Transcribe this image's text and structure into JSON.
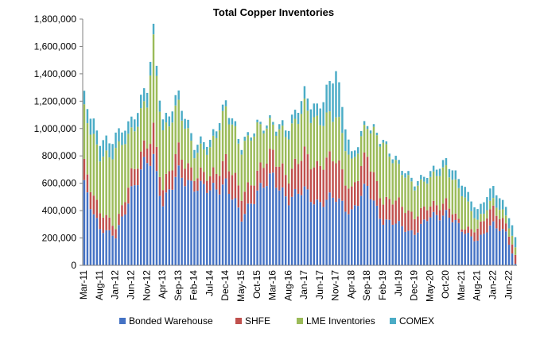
{
  "chart_data": {
    "type": "bar",
    "stacked": true,
    "title": "Total Copper Inventories",
    "xlabel": "",
    "ylabel": "",
    "ylim": [
      0,
      1800000
    ],
    "yticks": [
      "0",
      "200,000",
      "400,000",
      "600,000",
      "800,000",
      "1,000,000",
      "1,200,000",
      "1,400,000",
      "1,600,000",
      "1,800,000"
    ],
    "ytick_values": [
      0,
      200000,
      400000,
      600000,
      800000,
      1000000,
      1200000,
      1400000,
      1600000,
      1800000
    ],
    "xtick_labels": [
      "Mar-11",
      "Aug-11",
      "Jan-12",
      "Jun-12",
      "Nov-12",
      "Apr-13",
      "Sep-13",
      "Feb-14",
      "Jul-14",
      "Dec-14",
      "May-15",
      "Oct-15",
      "Mar-16",
      "Aug-16",
      "Jan-17",
      "Jun-17",
      "Nov-17",
      "Apr-18",
      "Sep-18",
      "Feb-19",
      "Jul-19",
      "Dec-19",
      "May-20",
      "Oct-20",
      "Mar-21",
      "Aug-21",
      "Jan-22",
      "Jun-22"
    ],
    "first_period": "Mar-11",
    "period_count": 138,
    "grid": false,
    "legend_position": "bottom",
    "series": [
      {
        "name": "Bonded Warehouse",
        "color": "#4472C4"
      },
      {
        "name": "SHFE",
        "color": "#C0504D"
      },
      {
        "name": "LME Inventories",
        "color": "#9BBB59"
      },
      {
        "name": "COMEX",
        "color": "#4BACC6"
      }
    ],
    "anchors": {
      "months": [
        0,
        5,
        10,
        15,
        20,
        22,
        25,
        30,
        35,
        40,
        45,
        50,
        55,
        60,
        65,
        70,
        74,
        80,
        85,
        90,
        95,
        100,
        105,
        110,
        115,
        120,
        125,
        130,
        134,
        137
      ],
      "bonded": [
        560,
        280,
        200,
        560,
        740,
        780,
        470,
        650,
        600,
        530,
        620,
        330,
        560,
        620,
        500,
        530,
        470,
        480,
        400,
        560,
        330,
        290,
        240,
        350,
        390,
        250,
        190,
        290,
        250,
        10
      ],
      "shfe": [
        150,
        120,
        70,
        120,
        120,
        220,
        110,
        170,
        80,
        100,
        170,
        170,
        130,
        180,
        160,
        280,
        260,
        300,
        150,
        240,
        140,
        170,
        120,
        80,
        80,
        20,
        80,
        120,
        60,
        60
      ],
      "lme": [
        400,
        400,
        560,
        300,
        320,
        600,
        400,
        330,
        170,
        200,
        370,
        340,
        330,
        200,
        310,
        340,
        320,
        320,
        200,
        220,
        420,
        250,
        220,
        200,
        250,
        250,
        60,
        60,
        60,
        60
      ],
      "comex": [
        100,
        120,
        100,
        90,
        100,
        80,
        80,
        70,
        60,
        50,
        50,
        30,
        20,
        20,
        60,
        90,
        100,
        300,
        60,
        20,
        20,
        30,
        30,
        40,
        60,
        70,
        80,
        90,
        70,
        80
      ]
    }
  }
}
